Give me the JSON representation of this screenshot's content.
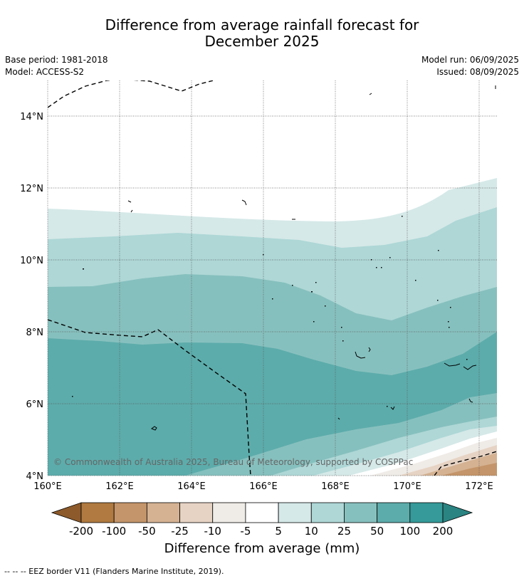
{
  "title": {
    "line1": "Difference from average rainfall forecast for",
    "line2": "December 2025"
  },
  "meta": {
    "base_period": "Base period: 1981-2018",
    "model": "Model: ACCESS-S2",
    "model_run": "Model run: 06/09/2025",
    "issued": "Issued: 08/09/2025"
  },
  "map": {
    "lon_ticks": [
      "160°E",
      "162°E",
      "164°E",
      "166°E",
      "168°E",
      "170°E",
      "172°E"
    ],
    "lat_ticks": [
      "4°N",
      "6°N",
      "8°N",
      "10°N",
      "12°N",
      "14°N"
    ],
    "copyright": "© Commonwealth of Australia 2025, Bureau of Meteorology, supported by COSPPac"
  },
  "colorbar": {
    "tick_labels": [
      "-200",
      "-100",
      "-50",
      "-25",
      "-10",
      "-5",
      "5",
      "10",
      "25",
      "50",
      "100",
      "200"
    ],
    "colors": [
      "#8c5a2b",
      "#b07a40",
      "#c4956a",
      "#d4b292",
      "#e6d3c3",
      "#efebe7",
      "#ffffff",
      "#d5e9e8",
      "#aed7d6",
      "#86c0be",
      "#5cacab",
      "#359a99",
      "#2a8482"
    ],
    "title": "Difference from average (mm)"
  },
  "footnote": "--  --  -- EEZ border V11 (Flanders Marine Institute, 2019)."
}
